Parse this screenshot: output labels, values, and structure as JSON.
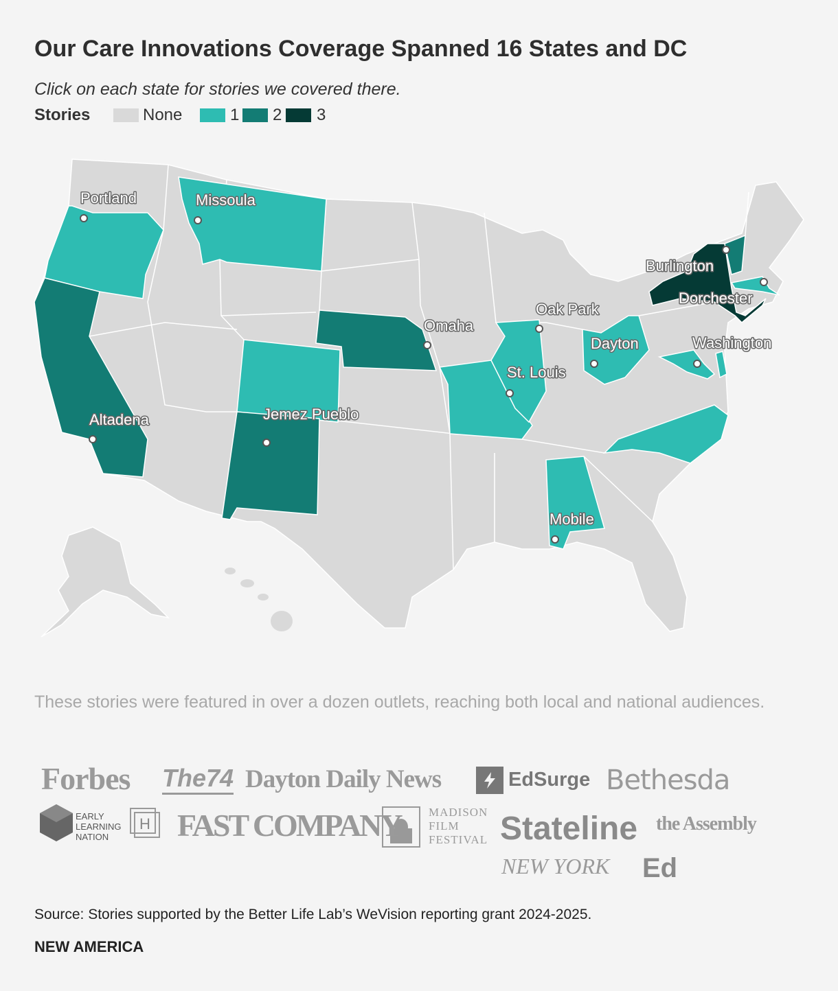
{
  "header": {
    "title": "Our Care Innovations Coverage Spanned 16 States and DC",
    "subtitle": "Click on each state for stories we covered there."
  },
  "legend": {
    "title": "Stories",
    "items": [
      {
        "label": "None",
        "color": "#d9d9d9"
      },
      {
        "label": 1,
        "color": "#2ebcb2"
      },
      {
        "label": 2,
        "color": "#137c74"
      },
      {
        "label": 3,
        "color": "#053a35"
      }
    ]
  },
  "map": {
    "state_stories": [
      1,
      2,
      1,
      1,
      2,
      2,
      1,
      1,
      1,
      1,
      1,
      1,
      1,
      3,
      2,
      1
    ],
    "cities": [
      "Portland",
      "Missoula",
      "Altadena",
      "Jemez Pueblo",
      "Omaha",
      "Oak Park",
      "St. Louis",
      "Dayton",
      "Burlington",
      "Dorchester",
      "Washington",
      "Mobile"
    ]
  },
  "note": "These stories were featured in over a dozen outlets, reaching both local and national audiences.",
  "outlets": [
    "Forbes",
    "The74",
    "Dayton Daily News",
    "EdSurge",
    "Bethesda",
    "EARLY LEARNING NATION",
    "H",
    "FAST COMPANY",
    "MADISON FILM FESTIVAL",
    "Stateline",
    "the Assembly",
    "NEW YORK",
    "Ed"
  ],
  "source": "Source: Stories supported by the Better Life Lab’s WeVision reporting grant 2024-2025.",
  "brand": "NEW AMERICA"
}
